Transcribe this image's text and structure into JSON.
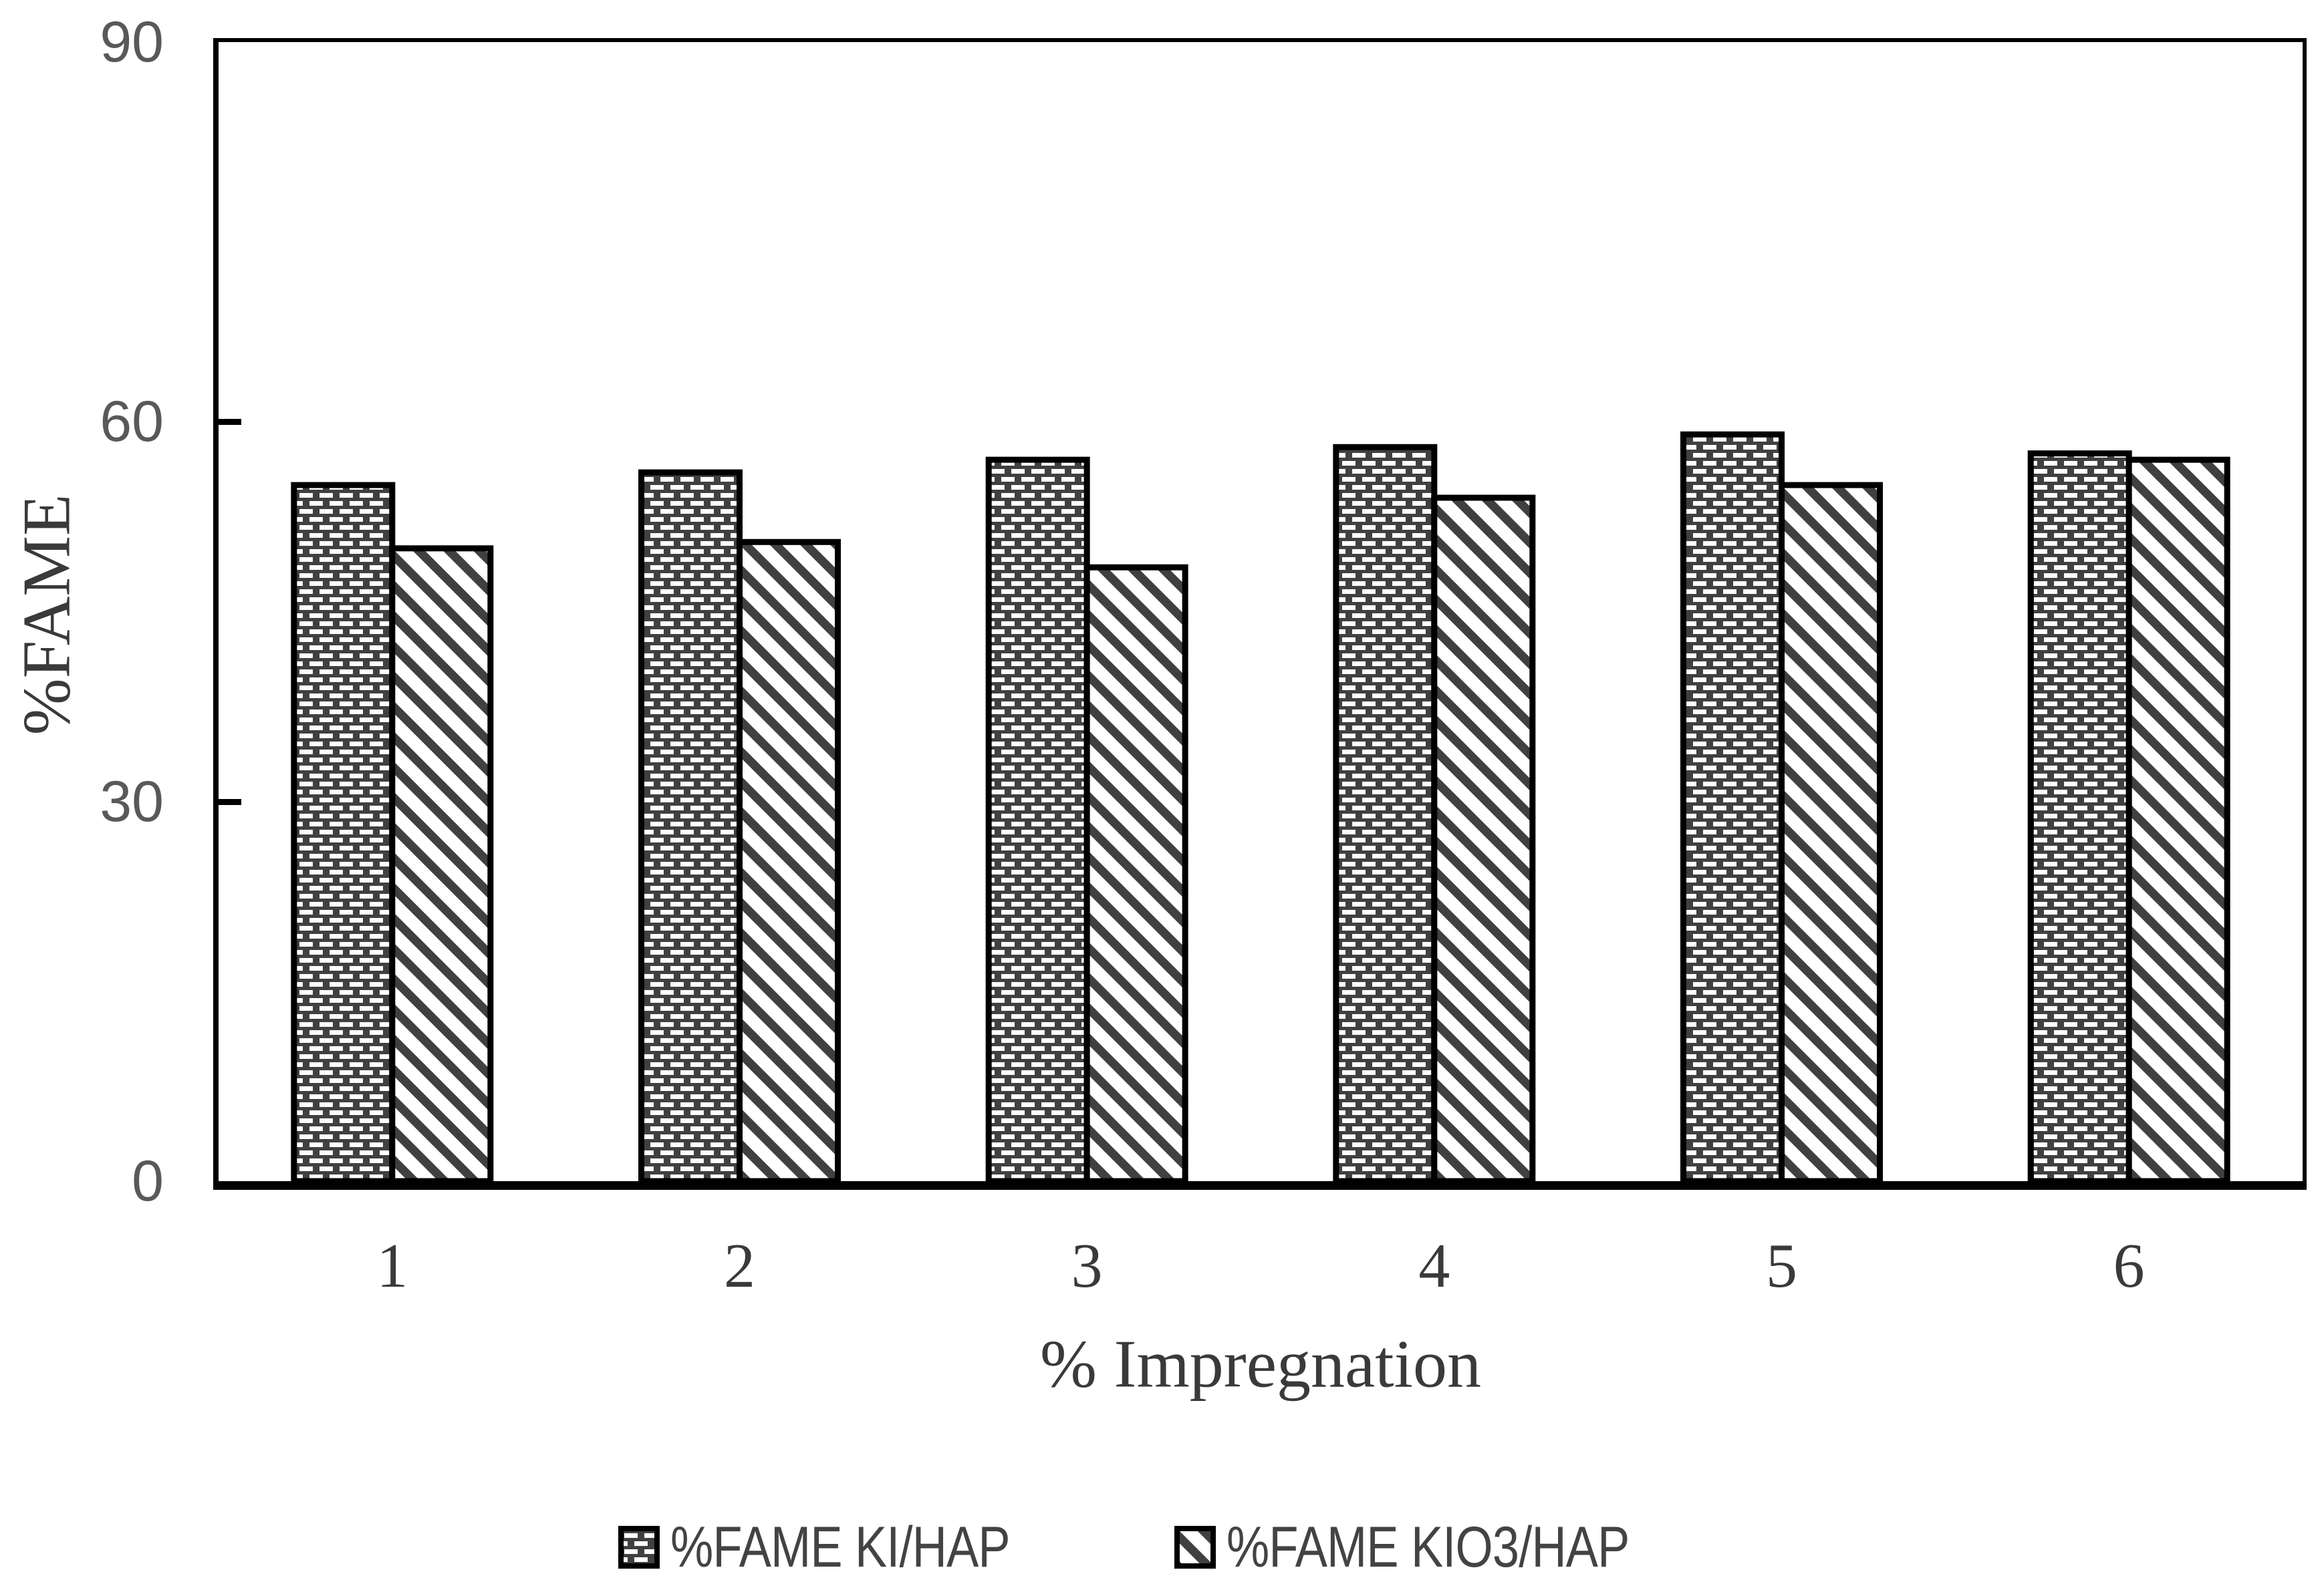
{
  "chart_data": {
    "type": "bar",
    "title": "",
    "xlabel": "% Impregnation",
    "ylabel": "%FAME",
    "categories": [
      "1",
      "2",
      "3",
      "4",
      "5",
      "6"
    ],
    "series": [
      {
        "name": "%FAME KI/HAP",
        "pattern": "dots",
        "values": [
          55,
          56,
          57,
          58,
          59,
          57.5
        ]
      },
      {
        "name": "%FAME KIO3/HAP",
        "pattern": "diagonal-stripes",
        "values": [
          50,
          50.5,
          48.5,
          54,
          55,
          57
        ]
      }
    ],
    "ylim": [
      0,
      90
    ],
    "yticks": [
      0,
      30,
      60,
      90
    ],
    "grid": false,
    "legend_position": "bottom-center",
    "colors": {
      "pattern_dark": "#404040",
      "pattern_light": "#ffffff",
      "bar_border": "#000000",
      "axis": "#000000",
      "tick_label": "#595959",
      "axis_title": "#3a3a3a",
      "legend_text": "#434343",
      "background": "#ffffff"
    }
  }
}
